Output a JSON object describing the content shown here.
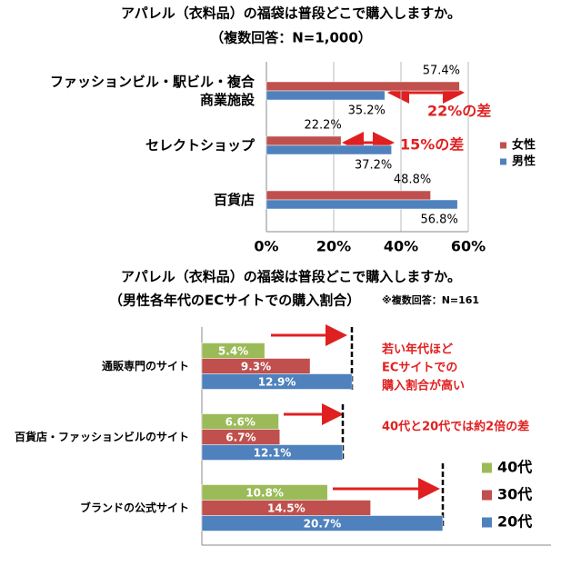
{
  "chart_data": [
    {
      "type": "hbar",
      "title": "アパレル（衣料品）の福袋は普段どこで購入しますか。",
      "subtitle": "（複数回答：N=1,000）",
      "categories": [
        "ファッションビル・駅ビル・複合商業施設",
        "セレクトショップ",
        "百貨店"
      ],
      "series": [
        {
          "name": "女性",
          "color": "#c0504d",
          "values": [
            57.4,
            22.2,
            48.8
          ],
          "value_labels": [
            "57.4%",
            "22.2%",
            "48.8%"
          ]
        },
        {
          "name": "男性",
          "color": "#4f81bd",
          "values": [
            35.2,
            37.2,
            56.8
          ],
          "value_labels": [
            "35.2%",
            "37.2%",
            "56.8%"
          ]
        }
      ],
      "xlim": [
        0,
        60
      ],
      "xticks": [
        {
          "value": 0,
          "label": "0%"
        },
        {
          "value": 20,
          "label": "20%"
        },
        {
          "value": 40,
          "label": "40%"
        },
        {
          "value": 60,
          "label": "60%"
        }
      ],
      "grid": true,
      "legend": "right",
      "annotations": [
        "22%の差",
        "15%の差"
      ]
    },
    {
      "type": "hbar",
      "title": "アパレル（衣料品）の福袋は普段どこで購入しますか。",
      "subtitle": "（男性各年代のECサイトでの購入割合）",
      "note": "※複数回答：N=161",
      "categories": [
        "通販専門のサイト",
        "百貨店・ファッションビルのサイト",
        "ブランドの公式サイト"
      ],
      "series": [
        {
          "name": "40代",
          "color": "#9bbb59",
          "values": [
            5.4,
            6.6,
            10.8
          ],
          "value_labels": [
            "5.4%",
            "6.6%",
            "10.8%"
          ]
        },
        {
          "name": "30代",
          "color": "#c0504d",
          "values": [
            9.3,
            6.7,
            14.5
          ],
          "value_labels": [
            "9.3%",
            "6.7%",
            "14.5%"
          ]
        },
        {
          "name": "20代",
          "color": "#4f81bd",
          "values": [
            12.9,
            12.1,
            20.7
          ],
          "value_labels": [
            "12.9%",
            "12.1%",
            "20.7%"
          ]
        }
      ],
      "xlim": [
        0,
        30
      ],
      "legend": "lower right",
      "annotations": [
        "若い年代ほど",
        "ECサイトでの",
        "購入割合が高い",
        "40代と20代では約2倍の差"
      ]
    }
  ]
}
